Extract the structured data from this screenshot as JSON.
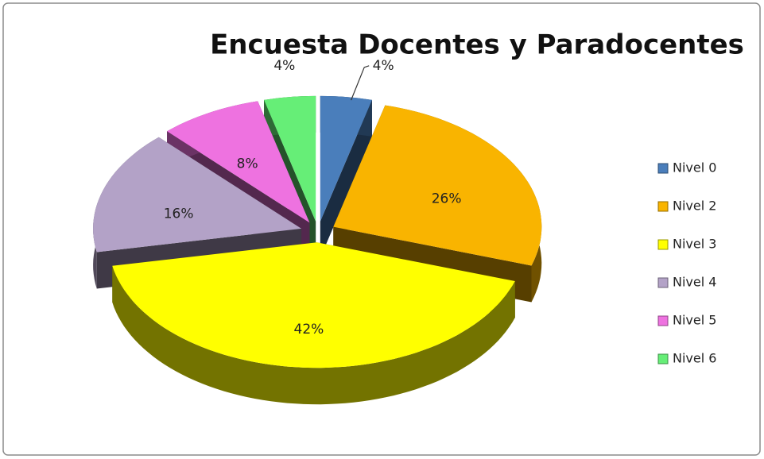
{
  "chart_data": {
    "type": "pie",
    "title": "Encuesta Docentes y Paradocentes",
    "categories": [
      "Nivel 0",
      "Nivel 2",
      "Nivel 3",
      "Nivel 4",
      "Nivel 5",
      "Nivel 6"
    ],
    "values": [
      4,
      26,
      42,
      16,
      8,
      4
    ],
    "value_labels": [
      "4%",
      "26%",
      "42%",
      "16%",
      "8%",
      "4%"
    ],
    "colors": [
      "#4a7ebb",
      "#f9b400",
      "#ffff00",
      "#b3a2c7",
      "#ee72e0",
      "#66ee77"
    ],
    "legend": "right"
  }
}
